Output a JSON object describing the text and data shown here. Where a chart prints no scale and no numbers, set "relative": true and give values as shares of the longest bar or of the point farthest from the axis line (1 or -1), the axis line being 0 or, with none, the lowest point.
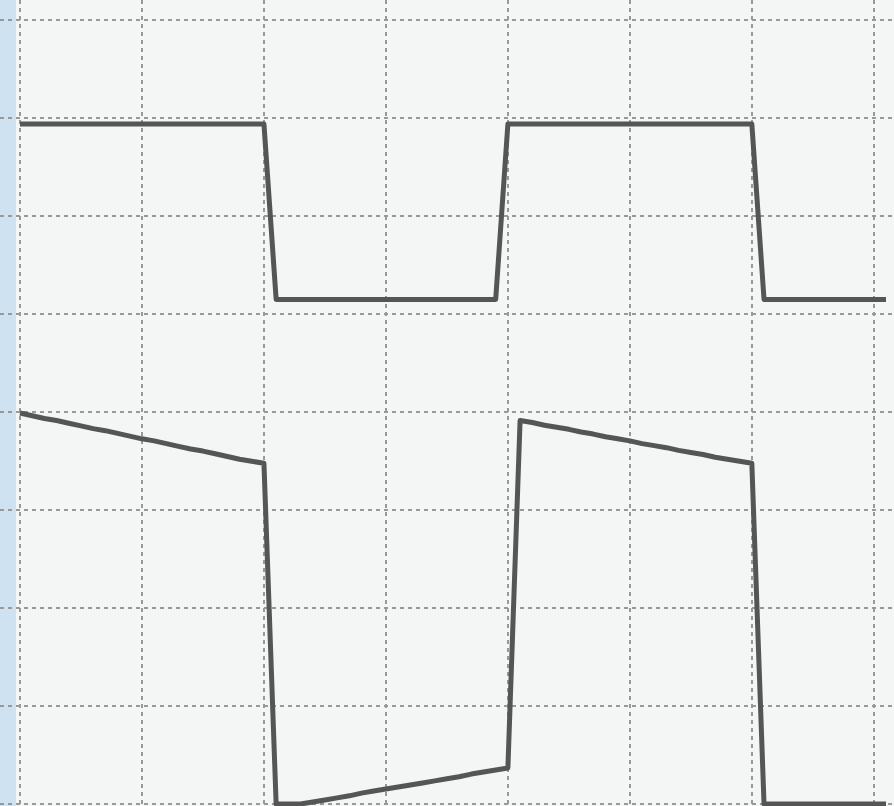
{
  "chart_data": {
    "type": "line",
    "relative": true,
    "grid": true,
    "line_style": "solid",
    "marker": "none",
    "categories": [
      null,
      null,
      null,
      null,
      null,
      null,
      null,
      null,
      null,
      null,
      null,
      null,
      null,
      null,
      null,
      null,
      null,
      null,
      null,
      null,
      null,
      null,
      null,
      null,
      null,
      null,
      null,
      null,
      null,
      null,
      null,
      null,
      null,
      null,
      null,
      null,
      null,
      null,
      null,
      null,
      null,
      null,
      null,
      null,
      null,
      null,
      null,
      null,
      null,
      null,
      null,
      null,
      null,
      null,
      null,
      null,
      null,
      null,
      null,
      null,
      null,
      null,
      null,
      null,
      null,
      null,
      null,
      null,
      null,
      null,
      null,
      null
    ],
    "series": [
      {
        "color": "#555555",
        "values": [
          1,
          1,
          1,
          1,
          1,
          1,
          1,
          1,
          1,
          1,
          1,
          1,
          1,
          1,
          1,
          1,
          1,
          1,
          1,
          1,
          1,
          0.742,
          0.742,
          0.742,
          0.742,
          0.742,
          0.742,
          0.742,
          0.742,
          0.742,
          0.742,
          0.742,
          0.742,
          0.742,
          0.742,
          0.742,
          0.742,
          0.742,
          0.742,
          0.742,
          1,
          1,
          1,
          1,
          1,
          1,
          1,
          1,
          1,
          1,
          1,
          1,
          1,
          1,
          1,
          1,
          1,
          1,
          1,
          1,
          1,
          0.742,
          0.742,
          0.742,
          0.742,
          0.742,
          0.742,
          0.742,
          0.742,
          0.742,
          0.742,
          0.742
        ]
      },
      {
        "color": "#555555",
        "values": [
          0.575,
          0.571,
          0.567,
          0.564,
          0.56,
          0.556,
          0.552,
          0.549,
          0.545,
          0.541,
          0.537,
          0.534,
          0.53,
          0.526,
          0.522,
          0.519,
          0.515,
          0.511,
          0.507,
          0.504,
          0.501,
          0,
          0,
          0,
          0.003,
          0.006,
          0.009,
          0.012,
          0.016,
          0.019,
          0.022,
          0.025,
          0.028,
          0.031,
          0.034,
          0.037,
          0.04,
          0.044,
          0.047,
          0.05,
          0.053,
          0.564,
          0.561,
          0.557,
          0.554,
          0.551,
          0.547,
          0.544,
          0.54,
          0.537,
          0.534,
          0.53,
          0.527,
          0.524,
          0.52,
          0.517,
          0.514,
          0.51,
          0.507,
          0.504,
          0.501,
          0,
          0,
          0,
          0,
          0,
          0,
          0,
          0,
          0,
          0,
          0
        ]
      }
    ]
  }
}
